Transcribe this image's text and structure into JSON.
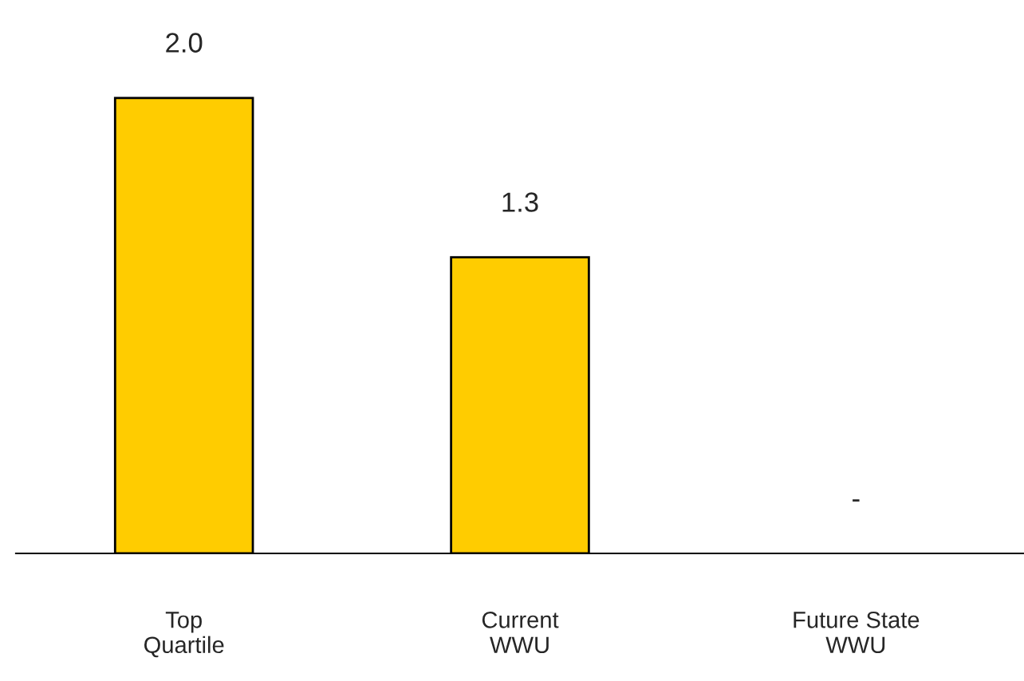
{
  "chart_data": {
    "type": "bar",
    "categories": [
      "Top\nQuartile",
      "Current\nWWU",
      "Future State\nWWU"
    ],
    "values": [
      2.0,
      1.3,
      null
    ],
    "value_labels": [
      "2.0",
      "1.3",
      "-"
    ],
    "color": "#ffcc00",
    "grid": false,
    "legend": false
  }
}
